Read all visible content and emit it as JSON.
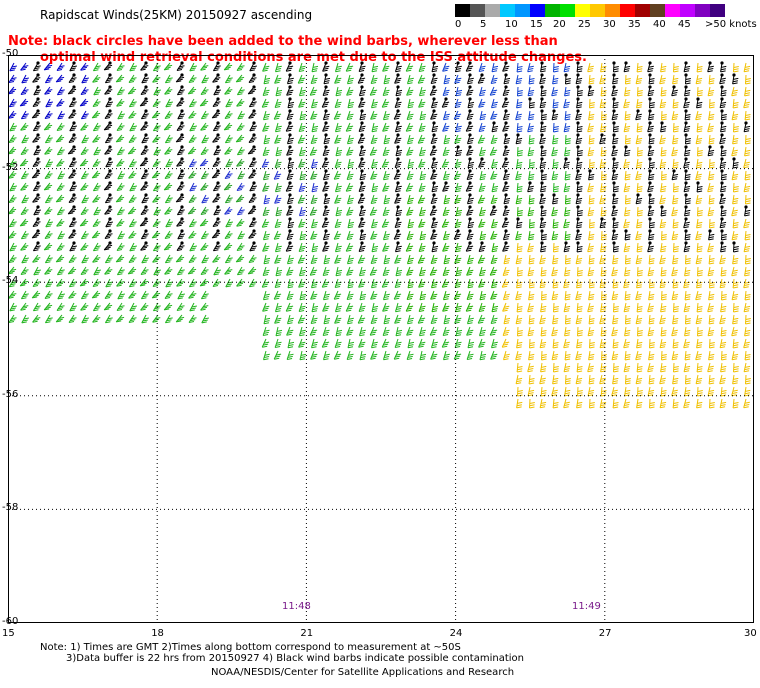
{
  "title": "Rapidscat Winds(25KM) 20150927 ascending",
  "note_line1": "Note: black circles have been added to the wind barbs, wherever less than",
  "note_line2": "optimal wind retrieval conditions are met due to the ISS attitude changes.",
  "legend": {
    "colors": [
      "#000000",
      "#555555",
      "#aaaaaa",
      "#00c8ff",
      "#0096ff",
      "#0000ff",
      "#00b400",
      "#00e000",
      "#ffff00",
      "#ffc800",
      "#ff8c00",
      "#ff0000",
      "#a00000",
      "#604020",
      "#ff00ff",
      "#c000ff",
      "#8000c0",
      "#400080"
    ],
    "labels": [
      "0",
      "5",
      "10",
      "15",
      "20",
      "25",
      "30",
      "35",
      "40",
      "45",
      ">50 knots"
    ]
  },
  "map": {
    "lon_ticks": [
      "15",
      "18",
      "21",
      "24",
      "27",
      "30"
    ],
    "lat_ticks": [
      "-50",
      "-52",
      "-54",
      "-56",
      "-58",
      "-60"
    ],
    "time_labels": [
      "11:48",
      "11:49"
    ]
  },
  "footer": {
    "line1": "Note: 1) Times are GMT 2)Times along bottom correspond to measurement at ~50S",
    "line2": "3)Data buffer is 22 hrs from 20150927 4) Black wind barbs indicate possible contamination",
    "line3": "NOAA/NESDIS/Center for Satellite Applications and Research"
  }
}
